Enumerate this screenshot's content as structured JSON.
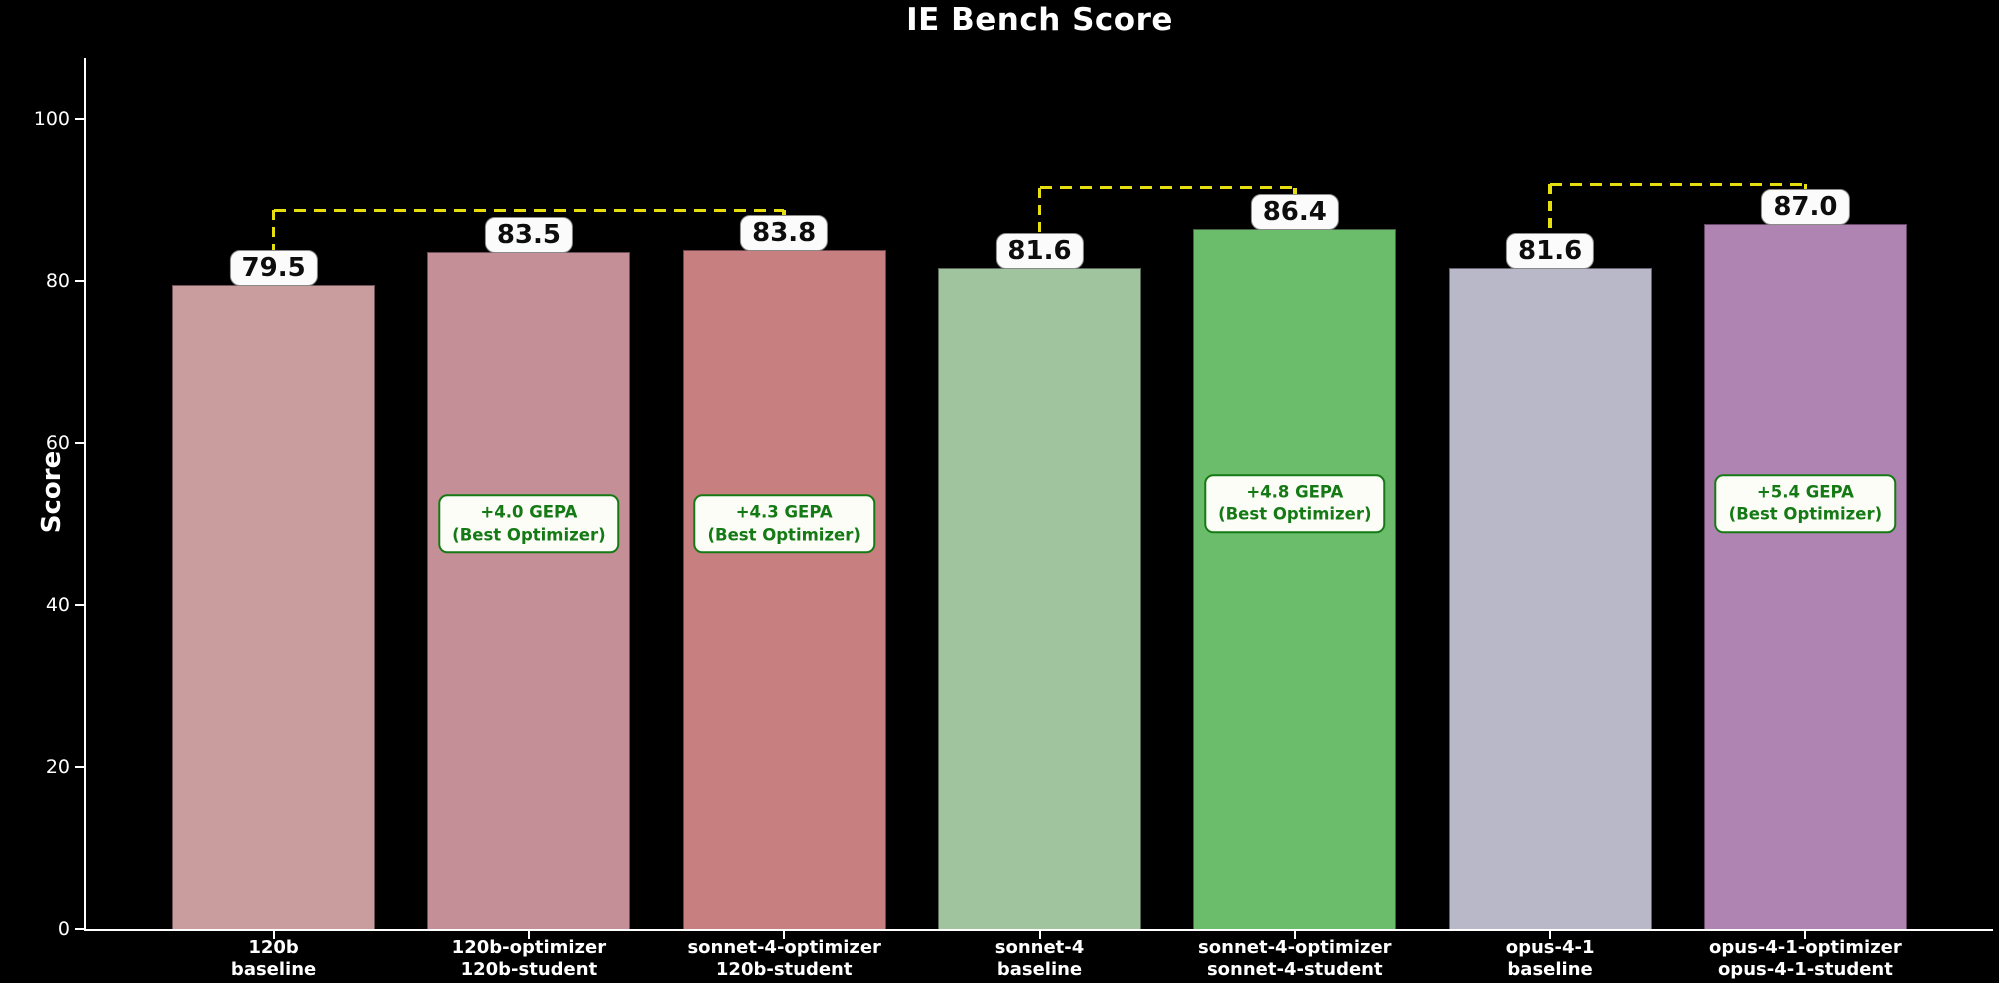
{
  "title": "IE Bench Score",
  "ylabel": "Score",
  "colors": {
    "background": "#000000",
    "axis": "#ffffff",
    "bracket_yellow": "#e6de0e",
    "gepa_green": "#157a15",
    "value_label_bg": "#fbfbfb",
    "note_bg": "#fbfdf6"
  },
  "chart_data": {
    "type": "bar",
    "title": "IE Bench Score",
    "xlabel": "",
    "ylabel": "Score",
    "ylim": [
      0,
      107.5
    ],
    "yticks": [
      0,
      20,
      40,
      60,
      80,
      100
    ],
    "grid": false,
    "legend": "none",
    "background": "#000000",
    "categories": [
      "120b\nbaseline",
      "120b-optimizer\n120b-student",
      "sonnet-4-optimizer\n120b-student",
      "sonnet-4\nbaseline",
      "sonnet-4-optimizer\nsonnet-4-student",
      "opus-4-1\nbaseline",
      "opus-4-1-optimizer\nopus-4-1-student"
    ],
    "values": [
      79.5,
      83.5,
      83.8,
      81.6,
      86.4,
      81.6,
      87.0
    ],
    "bars": [
      {
        "label_line1": "120b",
        "label_line2": "baseline",
        "value": 79.5,
        "color": "#c99c9d"
      },
      {
        "label_line1": "120b-optimizer",
        "label_line2": "120b-student",
        "value": 83.5,
        "color": "#c48f96",
        "gepa_note": {
          "line1": "+4.0 GEPA",
          "line2": "(Best Optimizer)",
          "y_center": 50
        }
      },
      {
        "label_line1": "sonnet-4-optimizer",
        "label_line2": "120b-student",
        "value": 83.8,
        "color": "#c87f80",
        "gepa_note": {
          "line1": "+4.3 GEPA",
          "line2": "(Best Optimizer)",
          "y_center": 50
        }
      },
      {
        "label_line1": "sonnet-4",
        "label_line2": "baseline",
        "value": 81.6,
        "color": "#9fc49e"
      },
      {
        "label_line1": "sonnet-4-optimizer",
        "label_line2": "sonnet-4-student",
        "value": 86.4,
        "color": "#6cbd6b",
        "gepa_note": {
          "line1": "+4.8 GEPA",
          "line2": "(Best Optimizer)",
          "y_center": 52.5
        }
      },
      {
        "label_line1": "opus-4-1",
        "label_line2": "baseline",
        "value": 81.6,
        "color": "#b9b8c8"
      },
      {
        "label_line1": "opus-4-1-optimizer",
        "label_line2": "opus-4-1-student",
        "value": 87.0,
        "color": "#b084b2",
        "gepa_note": {
          "line1": "+5.4 GEPA",
          "line2": "(Best Optimizer)",
          "y_center": 52.5
        }
      }
    ],
    "brackets": [
      {
        "from_bar": 0,
        "to_bar": 2,
        "y": 88.7,
        "color": "#e6de0e",
        "style": "dashed"
      },
      {
        "from_bar": 3,
        "to_bar": 4,
        "y": 91.5,
        "color": "#e6de0e",
        "style": "dashed"
      },
      {
        "from_bar": 5,
        "to_bar": 6,
        "y": 91.9,
        "color": "#e6de0e",
        "style": "dashed"
      }
    ]
  }
}
